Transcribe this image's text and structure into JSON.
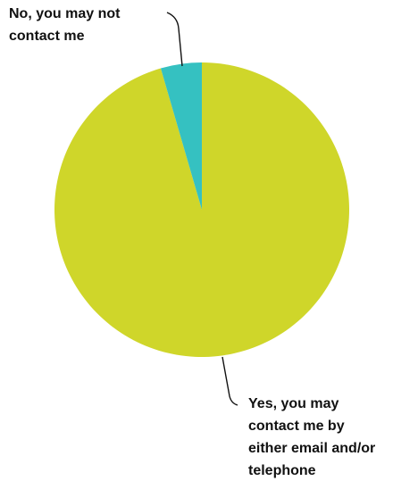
{
  "chart_data": {
    "type": "pie",
    "title": "",
    "slices": [
      {
        "label": "Yes, you may contact me by either email and/or telephone",
        "label_lines": [
          "Yes, you may",
          "contact me by",
          "either email and/or",
          "telephone"
        ],
        "value": 95.5,
        "color": "#cfd62a"
      },
      {
        "label": "No, you may not contact me",
        "label_lines": [
          "No, you may not",
          "contact me"
        ],
        "value": 4.5,
        "color": "#35c1c1"
      }
    ],
    "start_angle_deg": 0,
    "direction": "clockwise",
    "legend": "none"
  }
}
